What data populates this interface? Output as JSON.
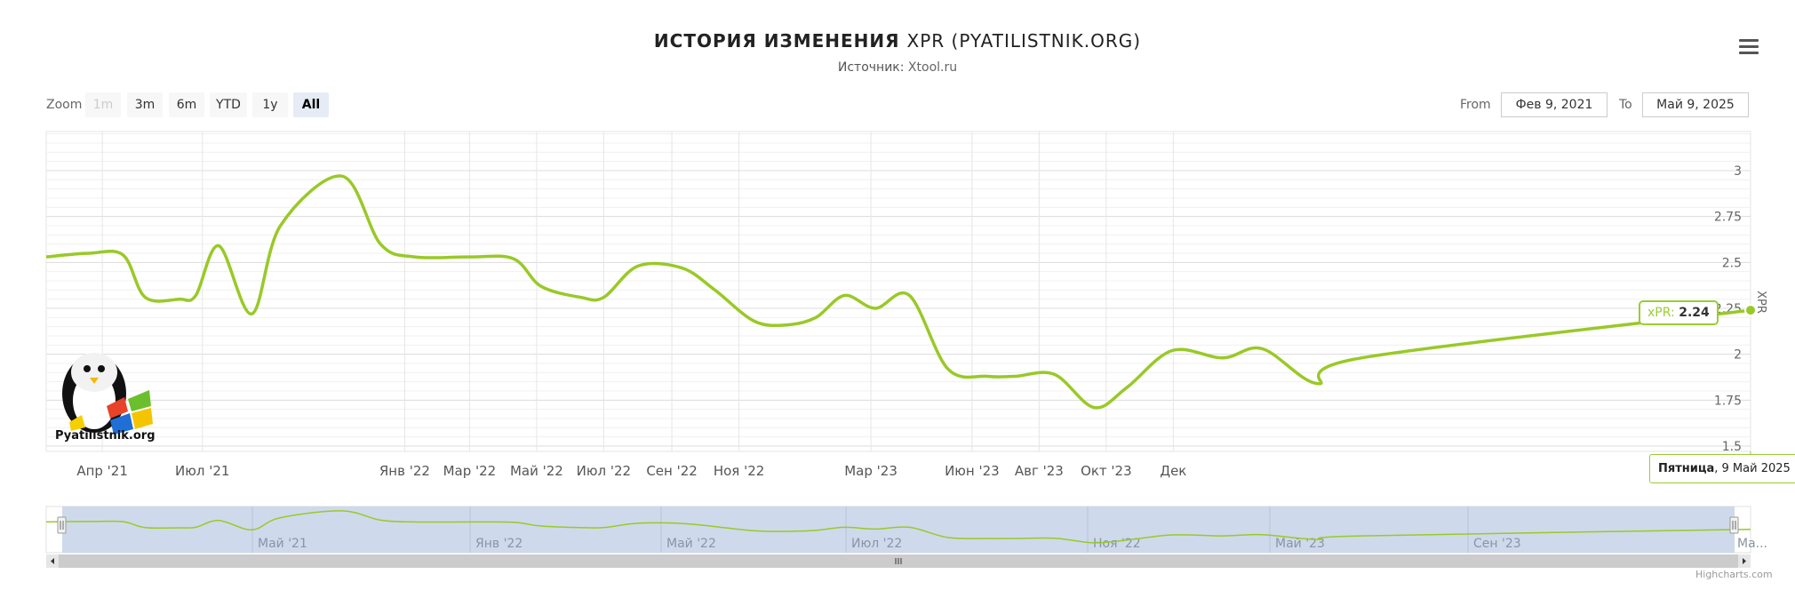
{
  "title": {
    "bold": "ИСТОРИЯ ИЗМЕНЕНИЯ",
    "rest": "XPR (PYATILISTNIK.ORG)"
  },
  "subtitle": {
    "label": "Источник:",
    "source": "Xtool.ru"
  },
  "zoom": {
    "label": "Zoom",
    "buttons": [
      "1m",
      "3m",
      "6m",
      "YTD",
      "1y",
      "All"
    ],
    "disabled": "1m",
    "active": "All"
  },
  "range": {
    "from_label": "From",
    "from": "Фев 9, 2021",
    "to_label": "To",
    "to": "Май 9, 2025"
  },
  "tooltip": {
    "series": "xPR:",
    "value": "2.24"
  },
  "crosshair_label": {
    "day": "Пятница",
    "date": ", 9 Май 2025"
  },
  "logo_text": "Pyatilistnik.org",
  "credits": "Highcharts.com",
  "colors": {
    "series": "#99c927",
    "navigator_fill": "#c6d3e8"
  },
  "chart_data": {
    "type": "line",
    "title": "ИСТОРИЯ ИЗМЕНЕНИЯ XPR (PYATILISTNIK.ORG)",
    "ylabel": "XPR",
    "ylim": [
      1.5,
      3.0
    ],
    "yticks": [
      "1.5",
      "1.75",
      "2",
      "2.25",
      "2.5",
      "2.75",
      "3"
    ],
    "xrange": [
      "2021-02-09",
      "2025-05-09"
    ],
    "xticks": [
      {
        "label": "Апр '21",
        "date": "2021-04-01"
      },
      {
        "label": "Июл '21",
        "date": "2021-07-01"
      },
      {
        "label": "Янв '22",
        "date": "2022-01-01"
      },
      {
        "label": "Мар '22",
        "date": "2022-03-01"
      },
      {
        "label": "Май '22",
        "date": "2022-05-01"
      },
      {
        "label": "Июл '22",
        "date": "2022-07-01"
      },
      {
        "label": "Сен '22",
        "date": "2022-09-01"
      },
      {
        "label": "Ноя '22",
        "date": "2022-11-01"
      },
      {
        "label": "Мар '23",
        "date": "2023-03-01"
      },
      {
        "label": "Июн '23",
        "date": "2023-06-01"
      },
      {
        "label": "Авг '23",
        "date": "2023-08-01"
      },
      {
        "label": "Окт '23",
        "date": "2023-10-01"
      },
      {
        "label": "Дек",
        "date": "2023-12-01"
      }
    ],
    "navigator_ticks": [
      "Май '21",
      "Янв '22",
      "Май '22",
      "Июл '22",
      "Ноя '22",
      "Май '23",
      "Сен '23",
      "Ма..."
    ],
    "series": [
      {
        "name": "xPR",
        "points": [
          [
            "2021-02-09",
            2.53
          ],
          [
            "2021-03-20",
            2.55
          ],
          [
            "2021-04-20",
            2.54
          ],
          [
            "2021-05-10",
            2.31
          ],
          [
            "2021-06-10",
            2.3
          ],
          [
            "2021-06-25",
            2.32
          ],
          [
            "2021-07-16",
            2.59
          ],
          [
            "2021-08-15",
            2.22
          ],
          [
            "2021-09-10",
            2.7
          ],
          [
            "2021-11-05",
            2.97
          ],
          [
            "2021-12-10",
            2.6
          ],
          [
            "2022-01-10",
            2.53
          ],
          [
            "2022-03-01",
            2.53
          ],
          [
            "2022-04-10",
            2.52
          ],
          [
            "2022-05-05",
            2.37
          ],
          [
            "2022-06-10",
            2.31
          ],
          [
            "2022-07-01",
            2.31
          ],
          [
            "2022-08-01",
            2.48
          ],
          [
            "2022-09-10",
            2.47
          ],
          [
            "2022-10-10",
            2.35
          ],
          [
            "2022-11-15",
            2.18
          ],
          [
            "2022-12-15",
            2.16
          ],
          [
            "2023-01-10",
            2.2
          ],
          [
            "2023-02-05",
            2.32
          ],
          [
            "2023-03-05",
            2.25
          ],
          [
            "2023-04-05",
            2.32
          ],
          [
            "2023-05-10",
            1.92
          ],
          [
            "2023-06-15",
            1.88
          ],
          [
            "2023-07-10",
            1.88
          ],
          [
            "2023-08-15",
            1.89
          ],
          [
            "2023-09-20",
            1.71
          ],
          [
            "2023-10-20",
            1.82
          ],
          [
            "2023-11-30",
            2.02
          ],
          [
            "2024-01-15",
            1.98
          ],
          [
            "2024-02-20",
            2.03
          ],
          [
            "2024-04-10",
            1.84
          ],
          [
            "2024-05-20",
            1.98
          ],
          [
            "2025-05-09",
            2.24
          ]
        ]
      }
    ]
  }
}
